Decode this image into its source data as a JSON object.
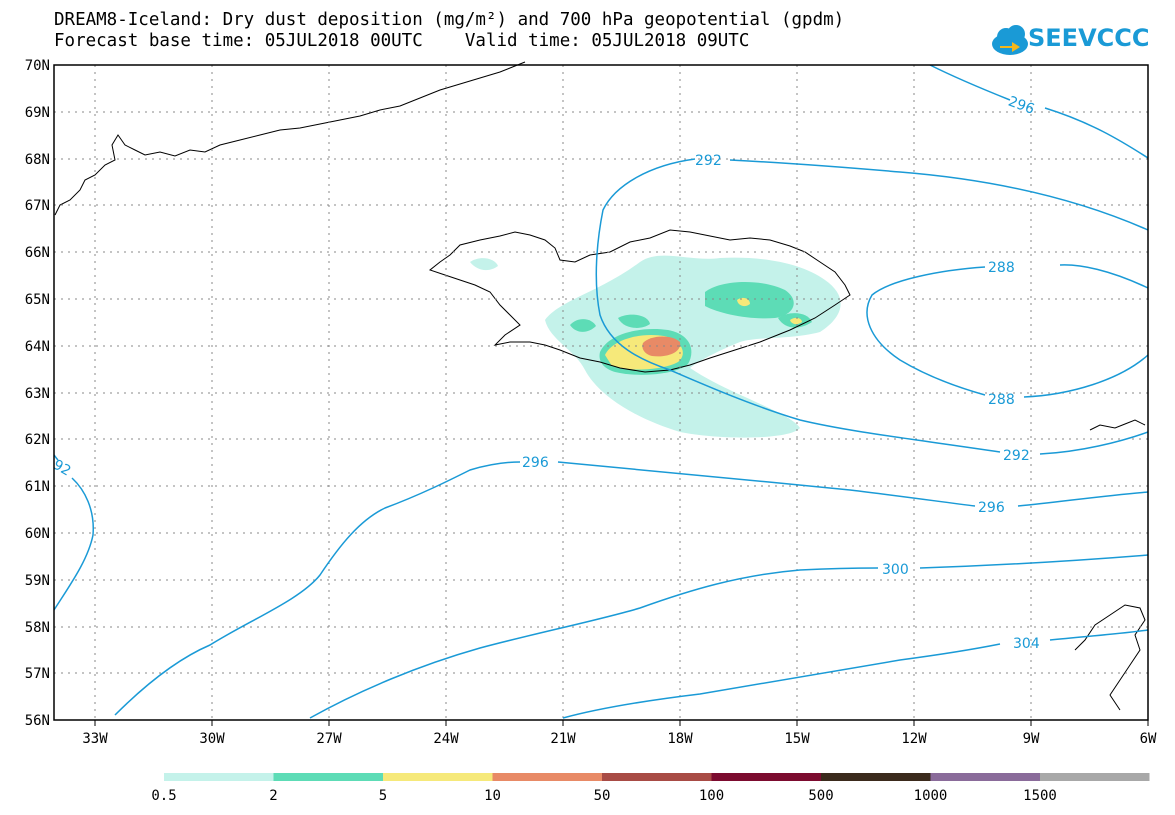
{
  "title": {
    "line1": "DREAM8-Iceland: Dry dust deposition (mg/m²) and 700 hPa geopotential (gpdm)",
    "line2": "Forecast base time: 05JUL2018 00UTC    Valid time: 05JUL2018 09UTC"
  },
  "logo": {
    "text": "SEEVCCC",
    "icon": "cloud-arrow-icon",
    "color": "#1a9ad6"
  },
  "map": {
    "lat_labels": [
      "70N",
      "69N",
      "68N",
      "67N",
      "66N",
      "65N",
      "64N",
      "63N",
      "62N",
      "61N",
      "60N",
      "59N",
      "58N",
      "57N",
      "56N"
    ],
    "lon_labels": [
      "33W",
      "30W",
      "27W",
      "24W",
      "21W",
      "18W",
      "15W",
      "12W",
      "9W",
      "6W"
    ],
    "contour_labels": [
      "296",
      "292",
      "288",
      "288",
      "292",
      "296",
      "296",
      "300",
      "304",
      "92"
    ],
    "contour_color": "#1a9ad6"
  },
  "colorbar": {
    "labels": [
      "0.5",
      "2",
      "5",
      "10",
      "50",
      "100",
      "500",
      "1000",
      "1500"
    ],
    "colors": [
      "#c4f2ea",
      "#5ddcb6",
      "#f6e97a",
      "#e88a66",
      "#a84b45",
      "#7c0b2f",
      "#3b2a1c",
      "#8a6b9a",
      "#a8a8a8"
    ]
  }
}
